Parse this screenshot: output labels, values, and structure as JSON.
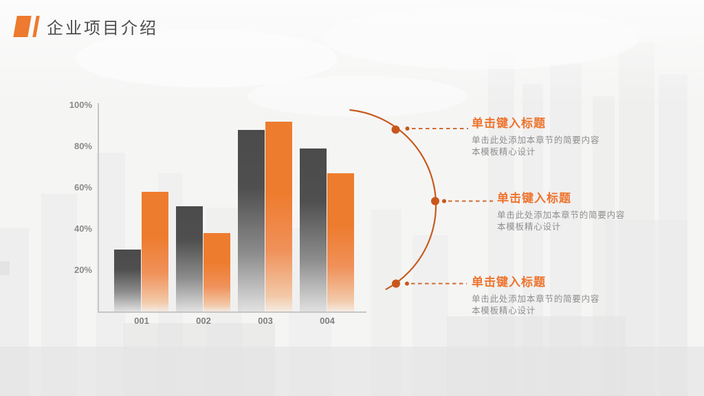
{
  "header": {
    "title": "企业项目介绍"
  },
  "chart_data": {
    "type": "bar",
    "title": "",
    "xlabel": "",
    "ylabel": "",
    "categories": [
      "001",
      "002",
      "003",
      "004"
    ],
    "series": [
      {
        "name": "gray-series",
        "color": "#4b4b4b",
        "values": [
          30,
          51,
          88,
          79
        ]
      },
      {
        "name": "orange-series",
        "color": "#ee7c2e",
        "values": [
          58,
          38,
          92,
          67
        ]
      }
    ],
    "y_ticks": [
      "100%",
      "80%",
      "60%",
      "40%",
      "20%"
    ],
    "ylim": [
      0,
      100
    ],
    "grid": false,
    "legend": "none",
    "bar_style": "vertical gradient fading to background at bottom"
  },
  "callouts": [
    {
      "title": "单击键入标题",
      "body_line1": "单击此处添加本章节的简要内容",
      "body_line2": "本模板精心设计"
    },
    {
      "title": "单击键入标题",
      "body_line1": "单击此处添加本章节的简要内容",
      "body_line2": "本模板精心设计"
    },
    {
      "title": "单击键入标题",
      "body_line1": "单击此处添加本章节的简要内容",
      "body_line2": "本模板精心设计"
    }
  ],
  "colors": {
    "accent_orange": "#ed7a2e",
    "arc_orange": "#c75a1f",
    "dash_orange": "#ce6c33",
    "bar_gray_top": "#4b4b4b",
    "title_gray": "#4d4d4d",
    "tick_gray": "#8a8a8a",
    "body_gray": "#8e8e8e",
    "background": "#f5f5f4"
  }
}
